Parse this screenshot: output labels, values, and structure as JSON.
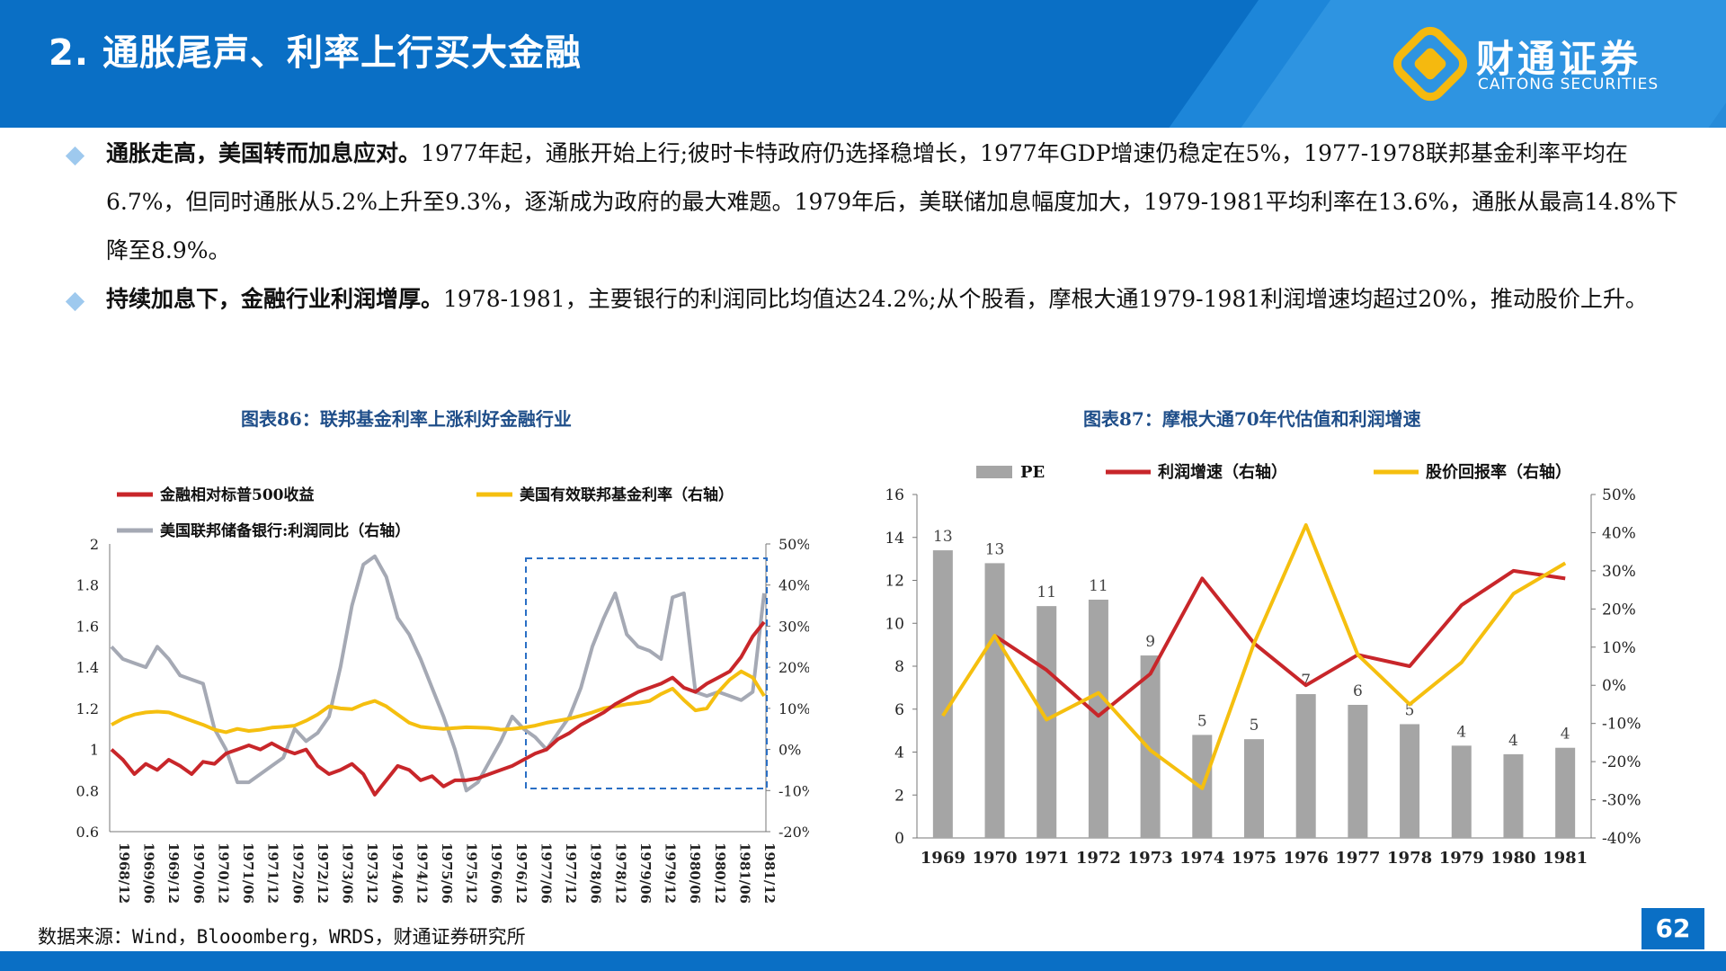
{
  "header": {
    "title": "2. 通胀尾声、利率上行买大金融",
    "logo_cn": "财通证券",
    "logo_en": "CAITONG SECURITIES"
  },
  "bullets": [
    {
      "bold": "通胀走高，美国转而加息应对。",
      "text": "1977年起，通胀开始上行;彼时卡特政府仍选择稳增长，1977年GDP增速仍稳定在5%，1977-1978联邦基金利率平均在6.7%，但同时通胀从5.2%上升至9.3%，逐渐成为政府的最大难题。1979年后，美联储加息幅度加大，1979-1981平均利率在13.6%，通胀从最高14.8%下降至8.9%。"
    },
    {
      "bold": "持续加息下，金融行业利润增厚。",
      "text": "1978-1981，主要银行的利润同比均值达24.2%;从个股看，摩根大通1979-1981利润增速均超过20%，推动股价上升。"
    }
  ],
  "chart_titles": {
    "left": "图表86：联邦基金利率上涨利好金融行业",
    "right": "图表87：摩根大通70年代估值和利润增速"
  },
  "footer": {
    "source": "数据来源：Wind，Blooomberg，WRDS，财通证券研究所",
    "page": "62"
  },
  "chart_data": [
    {
      "type": "line",
      "legend": [
        "金融相对标普500收益",
        "美国有效联邦基金利率（右轴）",
        "美国联邦储备银行:利润同比（右轴）"
      ],
      "x_ticks": [
        "1968/12",
        "1969/06",
        "1969/12",
        "1970/06",
        "1970/12",
        "1971/06",
        "1971/12",
        "1972/06",
        "1972/12",
        "1973/06",
        "1973/12",
        "1974/06",
        "1974/12",
        "1975/06",
        "1975/12",
        "1976/06",
        "1976/12",
        "1977/06",
        "1977/12",
        "1978/06",
        "1978/12",
        "1979/06",
        "1979/12",
        "1980/06",
        "1980/12",
        "1981/06",
        "1981/12"
      ],
      "ylim_left": [
        0.6,
        2
      ],
      "yticks_left": [
        "0.6",
        "0.8",
        "1",
        "1.2",
        "1.4",
        "1.6",
        "1.8",
        "2"
      ],
      "ylim_right": [
        -20,
        50
      ],
      "yticks_right": [
        "-20%",
        "-10%",
        "0%",
        "10%",
        "20%",
        "30%",
        "40%",
        "50%"
      ],
      "colors": [
        "#c8262a",
        "#f5bf0f",
        "#a5a9b4"
      ],
      "series": [
        {
          "name": "金融相对标普500收益",
          "axis": "left",
          "values": [
            1.0,
            0.95,
            0.88,
            0.93,
            0.9,
            0.95,
            0.92,
            0.88,
            0.94,
            0.93,
            0.98,
            1.0,
            1.02,
            1.0,
            1.03,
            1.0,
            0.98,
            1.0,
            0.92,
            0.88,
            0.9,
            0.93,
            0.88,
            0.78,
            0.85,
            0.92,
            0.9,
            0.85,
            0.87,
            0.82,
            0.85,
            0.85,
            0.86,
            0.88,
            0.9,
            0.92,
            0.95,
            0.98,
            1.0,
            1.05,
            1.08,
            1.12,
            1.15,
            1.18,
            1.22,
            1.25,
            1.28,
            1.3,
            1.32,
            1.35,
            1.3,
            1.28,
            1.32,
            1.35,
            1.38,
            1.45,
            1.55,
            1.62
          ]
        },
        {
          "name": "美国有效联邦基金利率（右轴）",
          "axis": "right",
          "values": [
            6.0,
            7.5,
            8.5,
            9.0,
            9.2,
            9.0,
            8.0,
            7.0,
            6.0,
            4.8,
            4.2,
            5.0,
            4.5,
            4.8,
            5.3,
            5.5,
            5.8,
            7.0,
            8.5,
            10.5,
            10.0,
            9.8,
            11.0,
            11.8,
            10.5,
            8.5,
            6.5,
            5.5,
            5.2,
            5.0,
            5.2,
            5.4,
            5.3,
            5.2,
            4.8,
            5.0,
            5.3,
            5.8,
            6.5,
            7.0,
            7.5,
            8.2,
            9.0,
            10.0,
            10.5,
            11.0,
            11.3,
            11.8,
            13.5,
            14.8,
            12.0,
            9.5,
            10.0,
            14.0,
            17.0,
            19.0,
            17.5,
            13.0
          ]
        },
        {
          "name": "美国联邦储备银行:利润同比（右轴）",
          "axis": "right",
          "values": [
            25,
            22,
            21,
            20,
            25,
            22,
            18,
            17,
            16,
            5,
            0,
            -8,
            -8,
            -6,
            -4,
            -2,
            5,
            2,
            4,
            8,
            20,
            35,
            45,
            47,
            42,
            32,
            28,
            22,
            15,
            8,
            0,
            -10,
            -8,
            -3,
            2,
            8,
            5,
            3,
            0,
            4,
            8,
            15,
            25,
            32,
            38,
            28,
            25,
            24,
            22,
            37,
            38,
            14,
            13,
            14,
            13,
            12,
            14,
            38
          ]
        }
      ]
    },
    {
      "type": "bar",
      "legend": [
        "PE",
        "利润增速（右轴）",
        "股价回报率（右轴）"
      ],
      "categories": [
        "1969",
        "1970",
        "1971",
        "1972",
        "1973",
        "1974",
        "1975",
        "1976",
        "1977",
        "1978",
        "1979",
        "1980",
        "1981"
      ],
      "ylim_left": [
        0,
        16
      ],
      "yticks_left": [
        "0",
        "2",
        "4",
        "6",
        "8",
        "10",
        "12",
        "14",
        "16"
      ],
      "ylim_right": [
        -40,
        50
      ],
      "yticks_right": [
        "-40%",
        "-30%",
        "-20%",
        "-10%",
        "0%",
        "10%",
        "20%",
        "30%",
        "40%",
        "50%"
      ],
      "colors": [
        "#a5a5a5",
        "#c8262a",
        "#f5bf0f"
      ],
      "series": [
        {
          "name": "PE",
          "axis": "left",
          "values": [
            13.4,
            12.8,
            10.8,
            11.1,
            8.5,
            4.8,
            4.6,
            6.7,
            6.2,
            5.3,
            4.3,
            3.9,
            4.2
          ],
          "labels": [
            "13",
            "13",
            "11",
            "11",
            "9",
            "5",
            "5",
            "7",
            "6",
            "5",
            "4",
            "4",
            "4"
          ]
        },
        {
          "name": "利润增速（右轴）",
          "axis": "right",
          "values": [
            null,
            13,
            4,
            -8,
            3,
            28,
            11,
            0,
            8,
            5,
            21,
            30,
            28
          ]
        },
        {
          "name": "股价回报率（右轴）",
          "axis": "right",
          "values": [
            -8,
            13,
            -9,
            -2,
            -17,
            -27,
            11,
            42,
            8,
            -5,
            6,
            24,
            32
          ]
        }
      ]
    }
  ]
}
